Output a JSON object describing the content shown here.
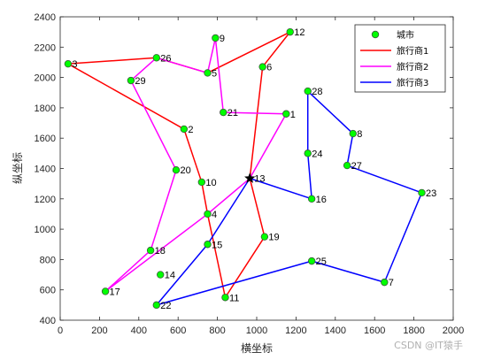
{
  "chart_data": {
    "type": "scatter",
    "xlabel": "横坐标",
    "ylabel": "纵坐标",
    "xlim": [
      0,
      2000
    ],
    "ylim": [
      400,
      2400
    ],
    "xticks": [
      0,
      200,
      400,
      600,
      800,
      1000,
      1200,
      1400,
      1600,
      1800,
      2000
    ],
    "yticks": [
      400,
      600,
      800,
      1000,
      1200,
      1400,
      1600,
      1800,
      2000,
      2200,
      2400
    ],
    "grid": false,
    "legend_position": "top-right",
    "depot": {
      "label": "13",
      "x": 965,
      "y": 1335
    },
    "cities": [
      {
        "label": "1",
        "x": 1150,
        "y": 1760
      },
      {
        "label": "2",
        "x": 630,
        "y": 1660
      },
      {
        "label": "3",
        "x": 40,
        "y": 2090
      },
      {
        "label": "4",
        "x": 750,
        "y": 1100
      },
      {
        "label": "5",
        "x": 750,
        "y": 2030
      },
      {
        "label": "6",
        "x": 1030,
        "y": 2070
      },
      {
        "label": "7",
        "x": 1650,
        "y": 650
      },
      {
        "label": "8",
        "x": 1490,
        "y": 1630
      },
      {
        "label": "9",
        "x": 790,
        "y": 2260
      },
      {
        "label": "10",
        "x": 720,
        "y": 1310
      },
      {
        "label": "11",
        "x": 840,
        "y": 550
      },
      {
        "label": "12",
        "x": 1170,
        "y": 2300
      },
      {
        "label": "14",
        "x": 510,
        "y": 700
      },
      {
        "label": "15",
        "x": 750,
        "y": 900
      },
      {
        "label": "16",
        "x": 1280,
        "y": 1200
      },
      {
        "label": "17",
        "x": 230,
        "y": 590
      },
      {
        "label": "18",
        "x": 460,
        "y": 860
      },
      {
        "label": "19",
        "x": 1040,
        "y": 950
      },
      {
        "label": "20",
        "x": 590,
        "y": 1390
      },
      {
        "label": "21",
        "x": 830,
        "y": 1770
      },
      {
        "label": "22",
        "x": 490,
        "y": 500
      },
      {
        "label": "23",
        "x": 1840,
        "y": 1240
      },
      {
        "label": "24",
        "x": 1260,
        "y": 1500
      },
      {
        "label": "25",
        "x": 1280,
        "y": 790
      },
      {
        "label": "26",
        "x": 490,
        "y": 2130
      },
      {
        "label": "27",
        "x": 1460,
        "y": 1420
      },
      {
        "label": "28",
        "x": 1260,
        "y": 1910
      },
      {
        "label": "29",
        "x": 360,
        "y": 1980
      }
    ],
    "series": [
      {
        "name": "城市",
        "marker": "circle",
        "color": "#00ff00",
        "edge": "#3a5a3a"
      },
      {
        "name": "旅行商1",
        "color": "#ff0000",
        "route": [
          "13",
          "6",
          "12",
          "5",
          "26",
          "3",
          "2",
          "10",
          "4",
          "11",
          "19",
          "13"
        ]
      },
      {
        "name": "旅行商2",
        "color": "#ff00ff",
        "route": [
          "13",
          "1",
          "21",
          "9",
          "5",
          "26",
          "29",
          "20",
          "18",
          "17",
          "4",
          "13"
        ]
      },
      {
        "name": "旅行商3",
        "color": "#0000ff",
        "route": [
          "13",
          "16",
          "24",
          "28",
          "8",
          "27",
          "23",
          "7",
          "25",
          "22",
          "15",
          "13"
        ]
      }
    ]
  },
  "watermark": "CSDN @IT猿手"
}
